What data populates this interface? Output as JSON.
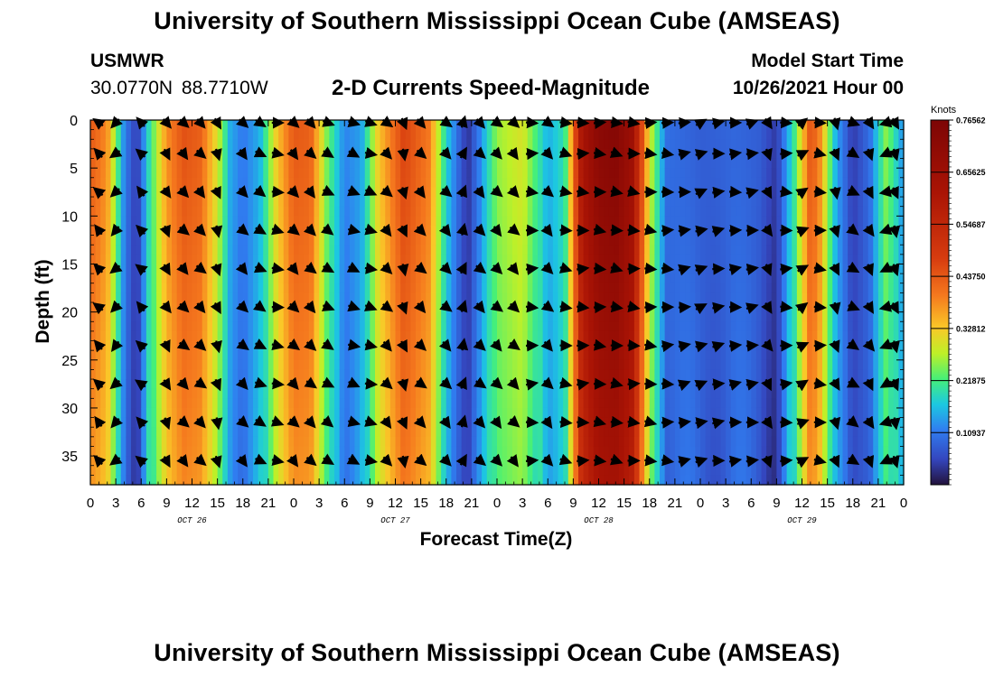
{
  "header": {
    "title": "University of Southern Mississippi Ocean Cube (AMSEAS)",
    "station": "USMWR",
    "latlon": "30.0770N  88.7710W",
    "subtitle": "2-D Currents Speed-Magnitude",
    "model_start_label": "Model Start Time",
    "model_start_value": "10/26/2021 Hour 00"
  },
  "footer": {
    "title": "University of Southern Mississippi Ocean Cube (AMSEAS)"
  },
  "chart_data": {
    "type": "heatmap",
    "title": "2-D Currents Speed-Magnitude",
    "xlabel": "Forecast Time(Z)",
    "ylabel": "Depth (ft)",
    "x_tick_labels": [
      "0",
      "3",
      "6",
      "9",
      "12",
      "15",
      "18",
      "21",
      "0",
      "3",
      "6",
      "9",
      "12",
      "15",
      "18",
      "21",
      "0",
      "3",
      "6",
      "9",
      "12",
      "15",
      "18",
      "21",
      "0",
      "3",
      "6",
      "9",
      "12",
      "15",
      "18",
      "21",
      "0"
    ],
    "day_labels": [
      {
        "label": "OCT 26",
        "hour": 12
      },
      {
        "label": "OCT 27",
        "hour": 36
      },
      {
        "label": "OCT 28",
        "hour": 60
      },
      {
        "label": "OCT 29",
        "hour": 84
      }
    ],
    "xlim_hours": [
      0,
      96
    ],
    "ylim_ft": [
      0,
      38
    ],
    "y_ticks": [
      0,
      5,
      10,
      15,
      20,
      25,
      30,
      35
    ],
    "colorbar": {
      "unit": "Knots",
      "range": [
        0,
        0.76562
      ],
      "tick_labels": [
        "0.76562",
        "0.65625",
        "0.54687",
        "0.43750",
        "0.32812",
        "0.21875",
        "0.10937"
      ]
    },
    "speed_profile_by_hour": [
      {
        "hour": 0,
        "knots": 0.44
      },
      {
        "hour": 2,
        "knots": 0.38
      },
      {
        "hour": 4,
        "knots": 0.12
      },
      {
        "hour": 5.5,
        "knots": 0.04
      },
      {
        "hour": 7,
        "knots": 0.2
      },
      {
        "hour": 9,
        "knots": 0.38
      },
      {
        "hour": 11,
        "knots": 0.45
      },
      {
        "hour": 13,
        "knots": 0.43
      },
      {
        "hour": 15,
        "knots": 0.3
      },
      {
        "hour": 16.5,
        "knots": 0.15
      },
      {
        "hour": 18,
        "knots": 0.11
      },
      {
        "hour": 20,
        "knots": 0.15
      },
      {
        "hour": 22,
        "knots": 0.33
      },
      {
        "hour": 24,
        "knots": 0.44
      },
      {
        "hour": 26,
        "knots": 0.43
      },
      {
        "hour": 28,
        "knots": 0.24
      },
      {
        "hour": 30,
        "knots": 0.12
      },
      {
        "hour": 32,
        "knots": 0.14
      },
      {
        "hour": 34,
        "knots": 0.33
      },
      {
        "hour": 37,
        "knots": 0.47
      },
      {
        "hour": 40,
        "knots": 0.4
      },
      {
        "hour": 42,
        "knots": 0.18
      },
      {
        "hour": 44.5,
        "knots": 0.03
      },
      {
        "hour": 46,
        "knots": 0.12
      },
      {
        "hour": 48,
        "knots": 0.26
      },
      {
        "hour": 51,
        "knots": 0.3
      },
      {
        "hour": 54,
        "knots": 0.15
      },
      {
        "hour": 56,
        "knots": 0.2
      },
      {
        "hour": 58,
        "knots": 0.62
      },
      {
        "hour": 60,
        "knots": 0.72
      },
      {
        "hour": 62,
        "knots": 0.74
      },
      {
        "hour": 64,
        "knots": 0.66
      },
      {
        "hour": 66,
        "knots": 0.3
      },
      {
        "hour": 68,
        "knots": 0.1
      },
      {
        "hour": 72,
        "knots": 0.08
      },
      {
        "hour": 76,
        "knots": 0.09
      },
      {
        "hour": 79,
        "knots": 0.08
      },
      {
        "hour": 81,
        "knots": 0.04
      },
      {
        "hour": 83,
        "knots": 0.2
      },
      {
        "hour": 85,
        "knots": 0.45
      },
      {
        "hour": 86,
        "knots": 0.4
      },
      {
        "hour": 88,
        "knots": 0.15
      },
      {
        "hour": 90,
        "knots": 0.04
      },
      {
        "hour": 92,
        "knots": 0.1
      },
      {
        "hour": 94,
        "knots": 0.26
      },
      {
        "hour": 96,
        "knots": 0.12
      }
    ],
    "arrow_direction_deg_by_column": [
      315,
      225,
      315,
      150,
      135,
      135,
      160,
      135,
      120,
      100,
      135,
      135,
      120,
      110,
      105,
      135,
      160,
      135,
      0,
      20,
      135,
      135,
      135,
      90,
      135,
      100,
      90,
      95,
      100,
      95,
      95,
      90,
      80,
      70,
      80,
      85,
      80,
      150,
      90,
      60,
      95,
      160,
      120,
      150,
      250,
      160
    ],
    "arrow_column_hours": [
      1,
      3,
      6,
      9,
      11,
      13,
      15,
      18,
      20,
      22,
      24,
      26,
      28,
      31,
      33,
      35,
      37,
      39,
      42,
      44,
      46,
      48,
      50,
      52,
      54,
      56,
      58,
      60,
      62,
      64,
      66,
      68,
      70,
      72,
      74,
      76,
      78,
      80,
      82,
      84,
      86,
      88,
      90,
      92,
      94,
      95
    ],
    "arrow_depths_ft": [
      0,
      3.5,
      7.5,
      11.5,
      15.5,
      19.5,
      23.5,
      27.5,
      31.5,
      35.5
    ]
  }
}
